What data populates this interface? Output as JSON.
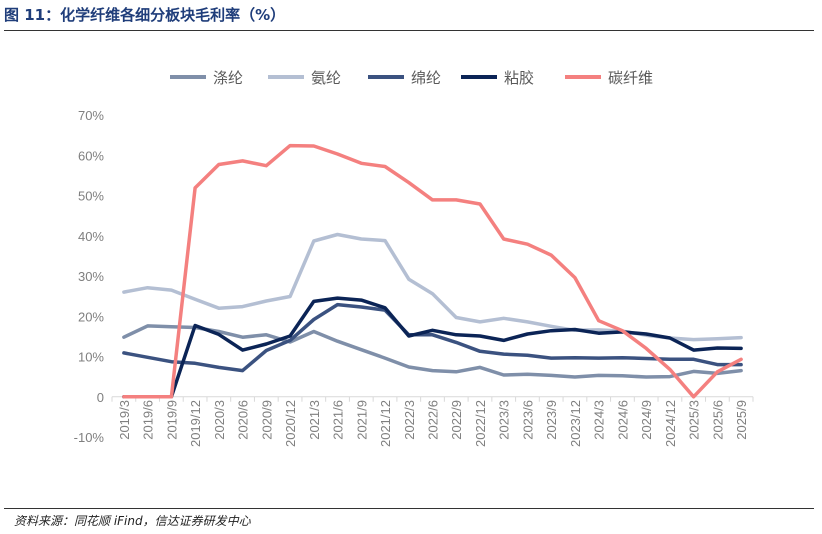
{
  "figure": {
    "title": "图 11：化学纤维各细分板块毛利率（%）",
    "source": "资料来源：同花顺 iFind，信达证券研发中心"
  },
  "chart_data": {
    "type": "line",
    "title": "",
    "xlabel": "",
    "ylabel": "",
    "ylim": [
      -10,
      70
    ],
    "yticks": [
      "-10%",
      "0",
      "10%",
      "20%",
      "30%",
      "40%",
      "50%",
      "60%",
      "70%"
    ],
    "grid": false,
    "legend_position": "top",
    "categories": [
      "2019/3",
      "2019/6",
      "2019/9",
      "2019/12",
      "2020/3",
      "2020/6",
      "2020/9",
      "2020/12",
      "2021/3",
      "2021/6",
      "2021/9",
      "2021/12",
      "2022/3",
      "2022/6",
      "2022/9",
      "2022/12",
      "2023/3",
      "2023/6",
      "2023/9",
      "2023/12",
      "2024/3",
      "2024/6",
      "2024/9",
      "2024/12",
      "2025/3",
      "2025/6",
      "2025/9"
    ],
    "series": [
      {
        "name": "涤纶",
        "color": "#7f8fa9",
        "values": [
          14.8,
          17.6,
          17.4,
          17.2,
          16.2,
          14.8,
          15.4,
          13.6,
          16.2,
          13.8,
          11.7,
          9.6,
          7.4,
          6.5,
          6.2,
          7.3,
          5.4,
          5.6,
          5.3,
          4.9,
          5.3,
          5.2,
          4.9,
          5.0,
          6.3,
          5.8,
          6.5
        ]
      },
      {
        "name": "氨纶",
        "color": "#b4bfd3",
        "values": [
          26.0,
          27.1,
          26.5,
          24.2,
          22.0,
          22.4,
          23.8,
          24.9,
          38.7,
          40.3,
          39.2,
          38.8,
          29.2,
          25.6,
          19.7,
          18.6,
          19.5,
          18.6,
          17.5,
          16.5,
          16.6,
          16.3,
          15.3,
          14.6,
          14.2,
          14.4,
          14.7
        ]
      },
      {
        "name": "绵纶",
        "color": "#3b5280",
        "values": [
          10.9,
          9.8,
          8.7,
          8.3,
          7.3,
          6.5,
          11.5,
          14.0,
          19.2,
          22.9,
          22.3,
          21.5,
          15.4,
          15.4,
          13.5,
          11.3,
          10.6,
          10.3,
          9.6,
          9.7,
          9.6,
          9.7,
          9.5,
          9.3,
          9.3,
          8.0,
          8.0
        ]
      },
      {
        "name": "粘胶",
        "color": "#0b2456",
        "values": [
          0,
          0,
          0,
          17.7,
          15.5,
          11.6,
          13.1,
          15.1,
          23.7,
          24.5,
          24.0,
          22.1,
          15.1,
          16.5,
          15.4,
          15.1,
          14.0,
          15.6,
          16.4,
          16.7,
          15.8,
          16.1,
          15.6,
          14.6,
          11.6,
          12.1,
          12.0
        ]
      },
      {
        "name": "碳纤维",
        "color": "#f4807f",
        "values": [
          0,
          0,
          0,
          51.9,
          57.7,
          58.6,
          57.4,
          62.4,
          62.3,
          60.3,
          58.0,
          57.2,
          53.2,
          48.9,
          48.9,
          47.9,
          39.2,
          37.9,
          35.2,
          29.6,
          18.9,
          16.4,
          12.0,
          6.8,
          0.0,
          6.2,
          9.3
        ]
      }
    ]
  }
}
